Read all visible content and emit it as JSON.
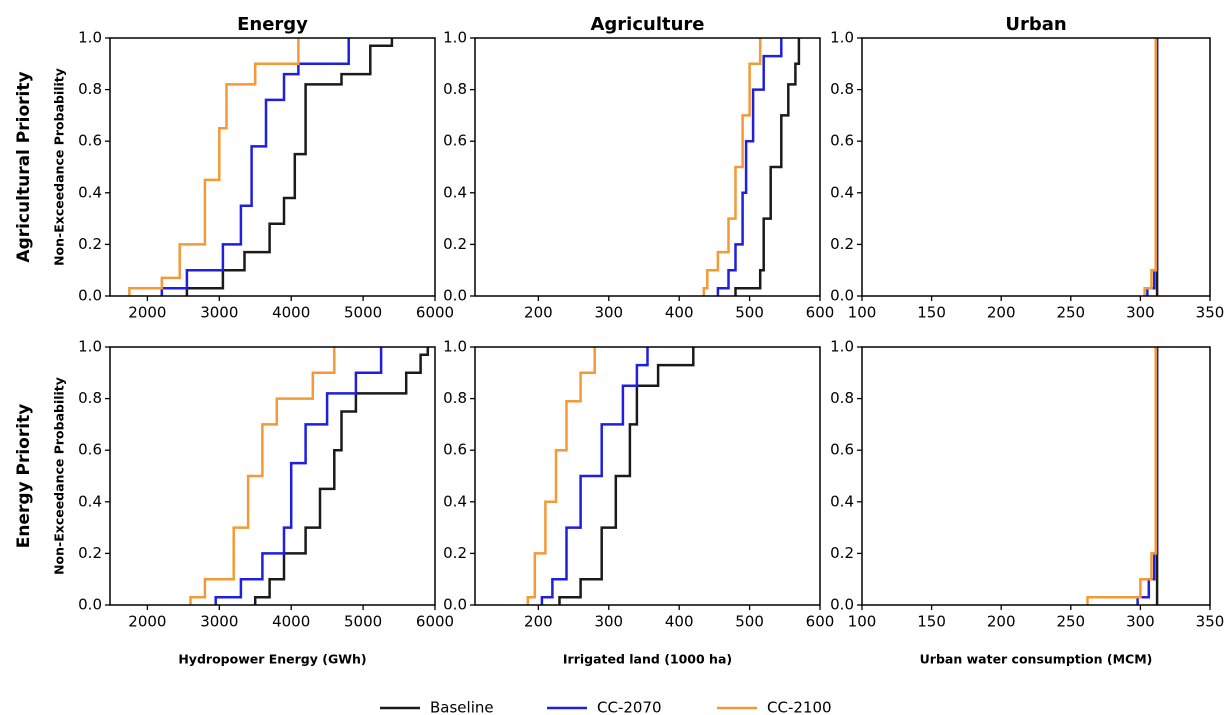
{
  "chart_data": [
    {
      "type": "line",
      "title": "Energy",
      "row_label": "Agricultural Priority",
      "ylabel": "Non-Exceedance Probability",
      "xlim": [
        1480,
        6000
      ],
      "xticks": [
        2000,
        3000,
        4000,
        5000,
        6000
      ],
      "ylim": [
        0,
        1
      ],
      "yticks": [
        {
          "value": 0,
          "label": "0.0"
        },
        0.2,
        0.4,
        0.6,
        0.8,
        {
          "value": 1,
          "label": "1.0"
        }
      ],
      "series": [
        {
          "name": "Baseline",
          "color": "#1a1a1a",
          "x": [
            2550,
            2550,
            3050,
            3050,
            3350,
            3350,
            3700,
            3700,
            3900,
            3900,
            4050,
            4050,
            4200,
            4200,
            4700,
            4700,
            5100,
            5100,
            5400,
            5400
          ],
          "values": [
            0,
            0.03,
            0.03,
            0.1,
            0.1,
            0.17,
            0.17,
            0.28,
            0.28,
            0.38,
            0.38,
            0.55,
            0.55,
            0.82,
            0.82,
            0.86,
            0.86,
            0.97,
            0.97,
            1
          ]
        },
        {
          "name": "CC-2070",
          "color": "#1f1fe0",
          "x": [
            2200,
            2200,
            2550,
            2550,
            3050,
            3050,
            3300,
            3300,
            3450,
            3450,
            3650,
            3650,
            3900,
            3900,
            4100,
            4100,
            4800,
            4800
          ],
          "values": [
            0,
            0.03,
            0.03,
            0.1,
            0.1,
            0.2,
            0.2,
            0.35,
            0.35,
            0.58,
            0.58,
            0.76,
            0.76,
            0.86,
            0.86,
            0.9,
            0.9,
            1
          ]
        },
        {
          "name": "CC-2100",
          "color": "#f39a36",
          "x": [
            1750,
            1750,
            2200,
            2200,
            2450,
            2450,
            2800,
            2800,
            3000,
            3000,
            3100,
            3100,
            3500,
            3500,
            4100,
            4100
          ],
          "values": [
            0,
            0.03,
            0.03,
            0.07,
            0.07,
            0.2,
            0.2,
            0.45,
            0.45,
            0.65,
            0.65,
            0.82,
            0.82,
            0.9,
            0.9,
            1
          ]
        }
      ]
    },
    {
      "type": "line",
      "title": "Agriculture",
      "xlim": [
        110,
        600
      ],
      "xticks": [
        200,
        300,
        400,
        500,
        600
      ],
      "ylim": [
        0,
        1
      ],
      "yticks": [
        {
          "value": 0,
          "label": "0.0"
        },
        0.2,
        0.4,
        0.6,
        0.8,
        {
          "value": 1,
          "label": "1.0"
        }
      ],
      "series": [
        {
          "color": "#1a1a1a",
          "x": [
            480,
            480,
            515,
            515,
            520,
            520,
            530,
            530,
            545,
            545,
            555,
            555,
            565,
            565,
            570,
            570
          ],
          "values": [
            0,
            0.03,
            0.03,
            0.1,
            0.1,
            0.3,
            0.3,
            0.5,
            0.5,
            0.7,
            0.7,
            0.82,
            0.82,
            0.9,
            0.9,
            1
          ]
        },
        {
          "color": "#1f1fe0",
          "x": [
            455,
            455,
            470,
            470,
            480,
            480,
            490,
            490,
            495,
            495,
            505,
            505,
            520,
            520,
            545,
            545
          ],
          "values": [
            0,
            0.03,
            0.03,
            0.1,
            0.1,
            0.2,
            0.2,
            0.4,
            0.4,
            0.6,
            0.6,
            0.8,
            0.8,
            0.93,
            0.93,
            1
          ]
        },
        {
          "color": "#f39a36",
          "x": [
            435,
            435,
            440,
            440,
            455,
            455,
            470,
            470,
            480,
            480,
            490,
            490,
            500,
            500,
            515,
            515
          ],
          "values": [
            0,
            0.03,
            0.03,
            0.1,
            0.1,
            0.17,
            0.17,
            0.3,
            0.3,
            0.5,
            0.5,
            0.7,
            0.7,
            0.9,
            0.9,
            1
          ]
        }
      ]
    },
    {
      "type": "line",
      "title": "Urban",
      "xlim": [
        100,
        350
      ],
      "xticks": [
        100,
        150,
        200,
        250,
        300,
        350
      ],
      "ylim": [
        0,
        1
      ],
      "yticks": [
        {
          "value": 0,
          "label": "0.0"
        },
        0.2,
        0.4,
        0.6,
        0.8,
        {
          "value": 1,
          "label": "1.0"
        }
      ],
      "series": [
        {
          "color": "#1a1a1a",
          "x": [
            312,
            312
          ],
          "values": [
            0,
            1
          ]
        },
        {
          "color": "#1f1fe0",
          "x": [
            305,
            305,
            310,
            310,
            312,
            312
          ],
          "values": [
            0,
            0.03,
            0.03,
            0.1,
            0.1,
            1
          ]
        },
        {
          "color": "#f39a36",
          "x": [
            303,
            303,
            308,
            308,
            311,
            311
          ],
          "values": [
            0,
            0.03,
            0.03,
            0.1,
            0.1,
            1
          ]
        }
      ]
    },
    {
      "type": "line",
      "row_label": "Energy Priority",
      "ylabel": "Non-Exceedance Probability",
      "xlabel": "Hydropower Energy (GWh)",
      "xlim": [
        1480,
        6000
      ],
      "xticks": [
        2000,
        3000,
        4000,
        5000,
        6000
      ],
      "ylim": [
        0,
        1
      ],
      "yticks": [
        {
          "value": 0,
          "label": "0.0"
        },
        0.2,
        0.4,
        0.6,
        0.8,
        {
          "value": 1,
          "label": "1.0"
        }
      ],
      "series": [
        {
          "color": "#1a1a1a",
          "x": [
            3500,
            3500,
            3700,
            3700,
            3900,
            3900,
            4200,
            4200,
            4400,
            4400,
            4600,
            4600,
            4700,
            4700,
            4900,
            4900,
            5600,
            5600,
            5800,
            5800,
            5900,
            5900
          ],
          "values": [
            0,
            0.03,
            0.03,
            0.1,
            0.1,
            0.2,
            0.2,
            0.3,
            0.3,
            0.45,
            0.45,
            0.6,
            0.6,
            0.75,
            0.75,
            0.82,
            0.82,
            0.9,
            0.9,
            0.97,
            0.97,
            1
          ]
        },
        {
          "color": "#1f1fe0",
          "x": [
            2950,
            2950,
            3300,
            3300,
            3600,
            3600,
            3900,
            3900,
            4000,
            4000,
            4200,
            4200,
            4500,
            4500,
            4900,
            4900,
            5250,
            5250
          ],
          "values": [
            0,
            0.03,
            0.03,
            0.1,
            0.1,
            0.2,
            0.2,
            0.3,
            0.3,
            0.55,
            0.55,
            0.7,
            0.7,
            0.82,
            0.82,
            0.9,
            0.9,
            1
          ]
        },
        {
          "color": "#f39a36",
          "x": [
            2600,
            2600,
            2800,
            2800,
            3200,
            3200,
            3400,
            3400,
            3600,
            3600,
            3800,
            3800,
            4300,
            4300,
            4600,
            4600
          ],
          "values": [
            0,
            0.03,
            0.03,
            0.1,
            0.1,
            0.3,
            0.3,
            0.5,
            0.5,
            0.7,
            0.7,
            0.8,
            0.8,
            0.9,
            0.9,
            1
          ]
        }
      ]
    },
    {
      "type": "line",
      "xlabel": "Irrigated land (1000 ha)",
      "xlim": [
        110,
        600
      ],
      "xticks": [
        200,
        300,
        400,
        500,
        600
      ],
      "ylim": [
        0,
        1
      ],
      "yticks": [
        {
          "value": 0,
          "label": "0.0"
        },
        0.2,
        0.4,
        0.6,
        0.8,
        {
          "value": 1,
          "label": "1.0"
        }
      ],
      "series": [
        {
          "color": "#1a1a1a",
          "x": [
            230,
            230,
            260,
            260,
            290,
            290,
            310,
            310,
            330,
            330,
            340,
            340,
            370,
            370,
            420,
            420
          ],
          "values": [
            0,
            0.03,
            0.03,
            0.1,
            0.1,
            0.3,
            0.3,
            0.5,
            0.5,
            0.7,
            0.7,
            0.85,
            0.85,
            0.93,
            0.93,
            1
          ]
        },
        {
          "color": "#1f1fe0",
          "x": [
            205,
            205,
            220,
            220,
            240,
            240,
            260,
            260,
            290,
            290,
            320,
            320,
            340,
            340,
            355,
            355
          ],
          "values": [
            0,
            0.03,
            0.03,
            0.1,
            0.1,
            0.3,
            0.3,
            0.5,
            0.5,
            0.7,
            0.7,
            0.85,
            0.85,
            0.93,
            0.93,
            1
          ]
        },
        {
          "color": "#f39a36",
          "x": [
            185,
            185,
            195,
            195,
            210,
            210,
            225,
            225,
            240,
            240,
            260,
            260,
            280,
            280
          ],
          "values": [
            0,
            0.03,
            0.03,
            0.2,
            0.2,
            0.4,
            0.4,
            0.6,
            0.6,
            0.79,
            0.79,
            0.9,
            0.9,
            1
          ]
        }
      ]
    },
    {
      "type": "line",
      "xlabel": "Urban water consumption (MCM)",
      "xlim": [
        100,
        350
      ],
      "xticks": [
        100,
        150,
        200,
        250,
        300,
        350
      ],
      "ylim": [
        0,
        1
      ],
      "yticks": [
        {
          "value": 0,
          "label": "0.0"
        },
        0.2,
        0.4,
        0.6,
        0.8,
        {
          "value": 1,
          "label": "1.0"
        }
      ],
      "series": [
        {
          "color": "#1a1a1a",
          "x": [
            312,
            312
          ],
          "values": [
            0,
            1
          ]
        },
        {
          "color": "#1f1fe0",
          "x": [
            298,
            298,
            306,
            306,
            310,
            310,
            312,
            312
          ],
          "values": [
            0,
            0.03,
            0.03,
            0.1,
            0.1,
            0.2,
            0.2,
            1
          ]
        },
        {
          "color": "#f39a36",
          "x": [
            262,
            262,
            300,
            300,
            308,
            308,
            311,
            311
          ],
          "values": [
            0,
            0.03,
            0.03,
            0.1,
            0.1,
            0.2,
            0.2,
            1
          ]
        }
      ]
    }
  ]
}
